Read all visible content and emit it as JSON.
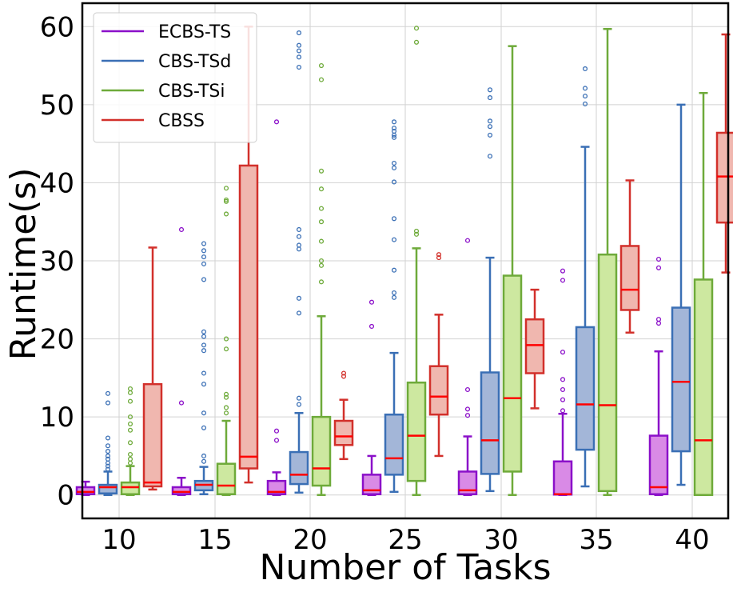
{
  "chart_data": {
    "type": "boxplot",
    "title": "",
    "xlabel": "Number of Tasks",
    "ylabel": "Runtime(s)",
    "ylim": [
      -3,
      63
    ],
    "yticks": [
      0,
      10,
      20,
      30,
      40,
      50,
      60
    ],
    "grid": true,
    "legend_position": "top-left",
    "categories": [
      "10",
      "15",
      "20",
      "25",
      "30",
      "35",
      "40"
    ],
    "series": [
      {
        "name": "ECBS-TS",
        "color": "#8b10c9",
        "fill": "#d98ae6",
        "stats": [
          {
            "whislo": 0,
            "q1": 0.1,
            "med": 0.4,
            "q3": 1.0,
            "whishi": 1.7,
            "fliers": []
          },
          {
            "whislo": 0,
            "q1": 0.1,
            "med": 0.4,
            "q3": 1.0,
            "whishi": 2.2,
            "fliers": [
              11.8,
              34.0
            ]
          },
          {
            "whislo": 0,
            "q1": 0.1,
            "med": 0.4,
            "q3": 1.8,
            "whishi": 2.9,
            "fliers": [
              7.0,
              8.2,
              47.8
            ]
          },
          {
            "whislo": 0,
            "q1": 0.1,
            "med": 0.6,
            "q3": 2.6,
            "whishi": 5.0,
            "fliers": [
              21.6,
              24.7
            ]
          },
          {
            "whislo": 0,
            "q1": 0.1,
            "med": 0.6,
            "q3": 3.0,
            "whishi": 7.5,
            "fliers": [
              10.2,
              11.0,
              13.5,
              32.6
            ]
          },
          {
            "whislo": 0,
            "q1": 0.05,
            "med": 0.1,
            "q3": 4.3,
            "whishi": 10.4,
            "fliers": [
              10.8,
              12.2,
              13.5,
              14.8,
              18.3,
              27.5,
              28.7
            ]
          },
          {
            "whislo": 0,
            "q1": 0.1,
            "med": 1.0,
            "q3": 7.6,
            "whishi": 18.4,
            "fliers": [
              22.0,
              22.5,
              29.1,
              30.2
            ]
          }
        ]
      },
      {
        "name": "CBS-TSd",
        "color": "#3a6fb5",
        "fill": "#a3b6d8",
        "stats": [
          {
            "whislo": 0,
            "q1": 0.2,
            "med": 1.0,
            "q3": 1.3,
            "whishi": 3.0,
            "fliers": [
              3.3,
              3.7,
              4.1,
              4.6,
              5.0,
              5.6,
              6.3,
              7.3,
              11.8,
              13.0
            ]
          },
          {
            "whislo": 0.1,
            "q1": 0.6,
            "med": 1.3,
            "q3": 1.8,
            "whishi": 3.6,
            "fliers": [
              4.3,
              5.0,
              8.6,
              10.5,
              14.2,
              15.6,
              18.5,
              19.2,
              20.3,
              20.9,
              27.6,
              29.6,
              30.5,
              31.3,
              32.2
            ]
          },
          {
            "whislo": 0.3,
            "q1": 1.4,
            "med": 2.6,
            "q3": 5.5,
            "whishi": 10.5,
            "fliers": [
              11.6,
              12.4,
              23.3,
              25.2,
              31.5,
              32.0,
              33.1,
              34.0,
              54.8,
              56.1,
              56.9,
              57.6,
              59.2
            ]
          },
          {
            "whislo": 0.4,
            "q1": 2.6,
            "med": 4.7,
            "q3": 10.3,
            "whishi": 18.2,
            "fliers": [
              25.3,
              25.9,
              28.8,
              32.7,
              35.4,
              40.1,
              41.9,
              42.5,
              45.8,
              46.1,
              46.6,
              47.0,
              47.8
            ]
          },
          {
            "whislo": 0.5,
            "q1": 2.7,
            "med": 7.0,
            "q3": 15.7,
            "whishi": 30.4,
            "fliers": [
              43.4,
              46.1,
              47.2,
              47.9,
              50.9,
              51.9
            ]
          },
          {
            "whislo": 1.1,
            "q1": 5.8,
            "med": 11.6,
            "q3": 21.5,
            "whishi": 44.6,
            "fliers": [
              50.1,
              51.1,
              52.1,
              54.6
            ]
          },
          {
            "whislo": 1.3,
            "q1": 5.6,
            "med": 14.5,
            "q3": 24.0,
            "whishi": 50.0,
            "fliers": []
          }
        ]
      },
      {
        "name": "CBS-TSi",
        "color": "#6eaa3a",
        "fill": "#cde8a0",
        "stats": [
          {
            "whislo": 0,
            "q1": 0.1,
            "med": 1.0,
            "q3": 1.6,
            "whishi": 3.7,
            "fliers": [
              4.1,
              4.6,
              5.2,
              6.7,
              8.3,
              9.1,
              10.0,
              12.0,
              13.1,
              13.6
            ]
          },
          {
            "whislo": 0,
            "q1": 0.1,
            "med": 1.2,
            "q3": 4.0,
            "whishi": 9.5,
            "fliers": [
              10.5,
              11.2,
              12.5,
              12.9,
              18.7,
              20.0,
              36.0,
              37.6,
              37.8,
              39.3
            ]
          },
          {
            "whislo": 0,
            "q1": 1.2,
            "med": 3.4,
            "q3": 10.0,
            "whishi": 22.9,
            "fliers": [
              27.3,
              29.4,
              30.0,
              32.5,
              35.0,
              36.7,
              39.2,
              41.5,
              53.2,
              55.0
            ]
          },
          {
            "whislo": 0,
            "q1": 1.8,
            "med": 7.6,
            "q3": 14.4,
            "whishi": 31.6,
            "fliers": [
              33.4,
              33.8,
              58.0,
              59.8
            ]
          },
          {
            "whislo": 0,
            "q1": 3.0,
            "med": 12.4,
            "q3": 28.1,
            "whishi": 57.5,
            "fliers": []
          },
          {
            "whislo": 0,
            "q1": 0.5,
            "med": 11.5,
            "q3": 30.8,
            "whishi": 59.7,
            "fliers": []
          },
          {
            "whislo": 0,
            "q1": 0,
            "med": 7.0,
            "q3": 27.6,
            "whishi": 51.5,
            "fliers": []
          }
        ]
      },
      {
        "name": "CBSS",
        "color": "#d2302b",
        "fill": "#f0b7af",
        "stats": [
          {
            "whislo": 0.7,
            "q1": 1.1,
            "med": 1.6,
            "q3": 14.2,
            "whishi": 31.7,
            "fliers": []
          },
          {
            "whislo": 1.6,
            "q1": 3.4,
            "med": 4.9,
            "q3": 42.2,
            "whishi": 60.0,
            "fliers": []
          },
          {
            "whislo": 4.6,
            "q1": 6.4,
            "med": 7.5,
            "q3": 9.5,
            "whishi": 12.2,
            "fliers": [
              15.2,
              15.6
            ]
          },
          {
            "whislo": 5.0,
            "q1": 10.3,
            "med": 12.6,
            "q3": 16.5,
            "whishi": 23.1,
            "fliers": [
              30.4,
              30.8
            ]
          },
          {
            "whislo": 11.1,
            "q1": 15.6,
            "med": 19.2,
            "q3": 22.5,
            "whishi": 26.3,
            "fliers": []
          },
          {
            "whislo": 20.8,
            "q1": 23.7,
            "med": 26.3,
            "q3": 31.9,
            "whishi": 40.3,
            "fliers": []
          },
          {
            "whislo": 28.5,
            "q1": 34.9,
            "med": 40.8,
            "q3": 46.4,
            "whishi": 59.0,
            "fliers": []
          }
        ]
      }
    ]
  }
}
